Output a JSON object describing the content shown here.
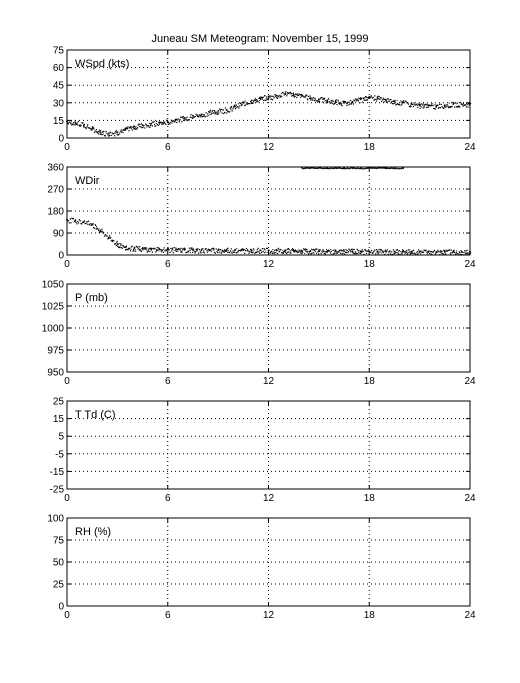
{
  "title": "Juneau SM Meteogram:   November 15, 1999",
  "chart_data": [
    {
      "type": "scatter",
      "label": "WSpd (kts)",
      "xlim": [
        0,
        24
      ],
      "ylim": [
        0,
        75
      ],
      "xticks": [
        0,
        6,
        12,
        18,
        24
      ],
      "yticks": [
        0,
        15,
        30,
        45,
        60,
        75
      ],
      "grid": true,
      "x": [
        0,
        0.5,
        1,
        1.5,
        2,
        2.5,
        3,
        3.5,
        4,
        4.5,
        5,
        5.5,
        6,
        6.5,
        7,
        7.5,
        8,
        8.5,
        9,
        9.5,
        10,
        10.5,
        11,
        11.5,
        12,
        12.5,
        13,
        13.5,
        14,
        14.5,
        15,
        15.5,
        16,
        16.5,
        17,
        17.5,
        18,
        18.5,
        19,
        19.5,
        20,
        20.5,
        21,
        21.5,
        22,
        22.5,
        23,
        23.5,
        24
      ],
      "y": [
        14,
        13,
        11,
        8,
        5,
        4,
        5,
        8,
        10,
        11,
        12,
        13,
        14,
        16,
        17,
        19,
        20,
        22,
        23,
        24,
        27,
        30,
        32,
        34,
        35,
        36,
        38,
        37,
        36,
        34,
        33,
        32,
        31,
        30,
        31,
        33,
        35,
        34,
        32,
        31,
        30,
        29,
        28,
        28,
        27,
        28,
        29,
        29,
        29
      ]
    },
    {
      "type": "scatter",
      "label": "WDir",
      "xlim": [
        0,
        24
      ],
      "ylim": [
        0,
        360
      ],
      "xticks": [
        0,
        6,
        12,
        18,
        24
      ],
      "yticks": [
        0,
        90,
        180,
        270,
        360
      ],
      "grid": true,
      "x": [
        0,
        0.5,
        1,
        1.5,
        2,
        2.5,
        3,
        3.5,
        4,
        4.5,
        5,
        5.5,
        6,
        6.5,
        7,
        7.5,
        8,
        8.5,
        9,
        9.5,
        10,
        10.5,
        11,
        11.5,
        12,
        12.5,
        13,
        13.5,
        14,
        14.5,
        15,
        15.5,
        16,
        16.5,
        17,
        17.5,
        18,
        18.5,
        19,
        19.5,
        20,
        20.5,
        21,
        21.5,
        22,
        22.5,
        23,
        23.5,
        24
      ],
      "y": [
        145,
        140,
        135,
        125,
        100,
        70,
        45,
        32,
        28,
        26,
        24,
        23,
        22,
        22,
        21,
        21,
        20,
        20,
        20,
        20,
        20,
        20,
        20,
        20,
        19,
        19,
        18,
        18,
        17,
        17,
        17,
        16,
        16,
        16,
        16,
        15,
        15,
        15,
        14,
        14,
        14,
        14,
        14,
        13,
        13,
        13,
        13,
        13,
        13
      ],
      "x_high": [
        14,
        14.5,
        15,
        15.5,
        16,
        16.5,
        17,
        17.5,
        18,
        18.5,
        19,
        19.5,
        20
      ],
      "y_high": [
        357,
        358,
        357,
        356,
        358,
        357,
        357,
        356,
        357,
        358,
        357,
        356,
        357
      ]
    },
    {
      "type": "scatter",
      "label": "P (mb)",
      "xlim": [
        0,
        24
      ],
      "ylim": [
        950,
        1050
      ],
      "xticks": [
        0,
        6,
        12,
        18,
        24
      ],
      "yticks": [
        950,
        975,
        1000,
        1025,
        1050
      ],
      "grid": true,
      "x": [],
      "y": []
    },
    {
      "type": "scatter",
      "label": "T Td (C)",
      "xlim": [
        0,
        24
      ],
      "ylim": [
        -25,
        25
      ],
      "xticks": [
        0,
        6,
        12,
        18,
        24
      ],
      "yticks": [
        -25,
        -15,
        -5,
        5,
        15,
        25
      ],
      "grid": true,
      "x": [],
      "y": []
    },
    {
      "type": "scatter",
      "label": "RH (%)",
      "xlim": [
        0,
        24
      ],
      "ylim": [
        0,
        100
      ],
      "xticks": [
        0,
        6,
        12,
        18,
        24
      ],
      "yticks": [
        0,
        25,
        50,
        75,
        100
      ],
      "grid": true,
      "x": [],
      "y": []
    }
  ]
}
